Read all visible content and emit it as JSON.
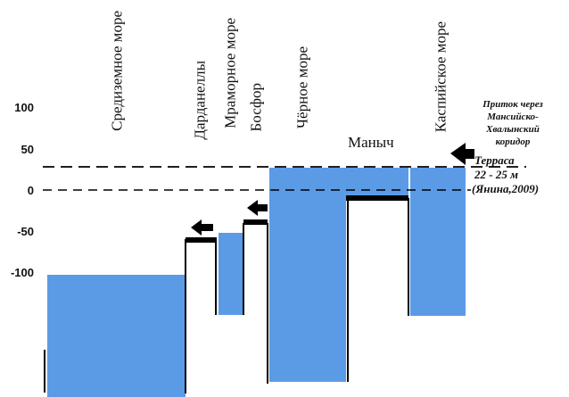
{
  "axis": {
    "ticks": [
      "100",
      "50",
      "0",
      "-50",
      "-100"
    ]
  },
  "basins": {
    "mediterranean": "Средиземное море",
    "dardanelles": "Дарданеллы",
    "marmara": "Мраморное море",
    "bosphorus": "Босфор",
    "black_sea": "Чёрное море",
    "manych": "Маныч",
    "caspian": "Каспийское море"
  },
  "inflow_note": {
    "lines": [
      "Приток через",
      "Мансийско-",
      "Хвалынский",
      "коридор"
    ]
  },
  "terrace_note": {
    "lines": [
      "Терраса",
      "22 - 25 м",
      "(Янина,2009)"
    ]
  },
  "colors": {
    "water": "#5b9be6",
    "lines": "#000000"
  }
}
